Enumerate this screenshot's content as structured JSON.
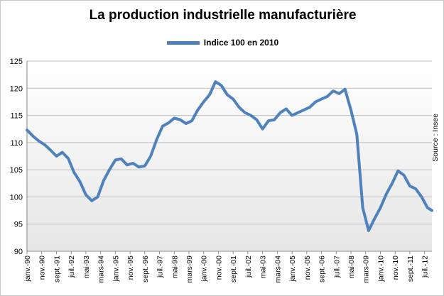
{
  "colors": {
    "series": "#4f81bd",
    "grid": "#c0c0c0",
    "plot_bg_top": "#ffffff",
    "plot_bg_bottom": "#e6e6e6"
  },
  "chart_data": {
    "type": "line",
    "title": "La production  industrielle  manufacturière",
    "xlabel": "",
    "ylabel": "",
    "ylim": [
      90,
      125
    ],
    "yticks": [
      90,
      95,
      100,
      105,
      110,
      115,
      120,
      125
    ],
    "x_range": [
      "janv.-90",
      "déc.-12"
    ],
    "x_tick_labels": [
      "janv.-90",
      "nov.-90",
      "sept.-91",
      "juil.-92",
      "mai-93",
      "mars-94",
      "janv.-95",
      "nov.-95",
      "sept.-96",
      "juil.-97",
      "mai-98",
      "mars-99",
      "janv.-00",
      "nov.-00",
      "sept.-01",
      "juil.-02",
      "mai-03",
      "mars-04",
      "janv.-05",
      "nov.-05",
      "sept.-06",
      "juil.-07",
      "mai-08",
      "mars-09",
      "janv.-10",
      "nov.-10",
      "sept.-11",
      "juil.-12"
    ],
    "grid": true,
    "legend_position": "top",
    "annotation": "Source : Insee",
    "series": [
      {
        "name": "Indice 100 en 2010",
        "x": [
          "janv.-90",
          "mai-90",
          "sept.-90",
          "janv.-91",
          "mai-91",
          "sept.-91",
          "janv.-92",
          "mai-92",
          "sept.-92",
          "janv.-93",
          "mai-93",
          "sept.-93",
          "janv.-94",
          "mai-94",
          "sept.-94",
          "janv.-95",
          "mai-95",
          "sept.-95",
          "janv.-96",
          "mai-96",
          "sept.-96",
          "janv.-97",
          "mai-97",
          "sept.-97",
          "janv.-98",
          "mai-98",
          "sept.-98",
          "janv.-99",
          "mai-99",
          "sept.-99",
          "janv.-00",
          "mai-00",
          "sept.-00",
          "janv.-01",
          "mai-01",
          "sept.-01",
          "janv.-02",
          "mai-02",
          "sept.-02",
          "janv.-03",
          "mai-03",
          "sept.-03",
          "janv.-04",
          "mai-04",
          "sept.-04",
          "janv.-05",
          "mai-05",
          "sept.-05",
          "janv.-06",
          "mai-06",
          "sept.-06",
          "janv.-07",
          "mai-07",
          "sept.-07",
          "janv.-08",
          "mai-08",
          "sept.-08",
          "janv.-09",
          "mai-09",
          "sept.-09",
          "janv.-10",
          "mai-10",
          "sept.-10",
          "janv.-11",
          "mai-11",
          "sept.-11",
          "janv.-12",
          "mai-12",
          "sept.-12",
          "déc.-12"
        ],
        "values": [
          112.3,
          111.2,
          110.3,
          109.6,
          108.6,
          107.5,
          108.2,
          107.1,
          104.5,
          102.8,
          100.4,
          99.3,
          100.0,
          103.0,
          105.0,
          106.8,
          107.0,
          105.9,
          106.2,
          105.5,
          105.7,
          107.5,
          110.5,
          113.0,
          113.6,
          114.5,
          114.2,
          113.5,
          114.0,
          116.0,
          117.5,
          118.8,
          121.2,
          120.5,
          118.8,
          118.0,
          116.5,
          115.5,
          115.0,
          114.2,
          112.5,
          114.0,
          114.2,
          115.5,
          116.2,
          115.0,
          115.5,
          116.0,
          116.5,
          117.5,
          118.0,
          118.5,
          119.5,
          119.0,
          119.8,
          116.0,
          111.5,
          98.0,
          93.8,
          96.0,
          98.0,
          100.5,
          102.5,
          104.8,
          104.0,
          102.0,
          101.5,
          100.0,
          98.0,
          97.5
        ]
      }
    ]
  }
}
